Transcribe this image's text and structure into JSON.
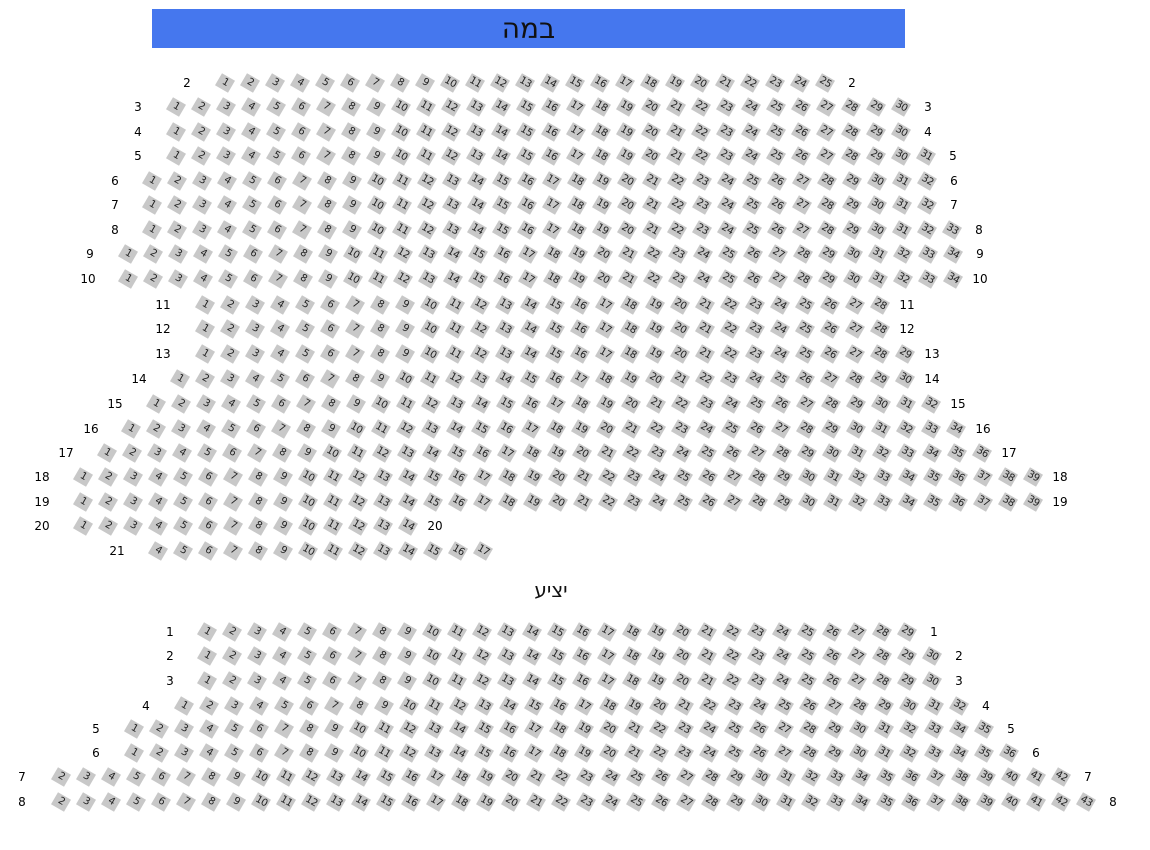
{
  "stage": {
    "label": "במה",
    "color": "#4577ee"
  },
  "seat_color": "#c8c8c8",
  "sections": [
    {
      "name": "main",
      "title": "",
      "rows": [
        {
          "label": "2",
          "first": 1,
          "last": 25
        },
        {
          "label": "3",
          "first": 1,
          "last": 30
        },
        {
          "label": "4",
          "first": 1,
          "last": 30
        },
        {
          "label": "5",
          "first": 1,
          "last": 31
        },
        {
          "label": "6",
          "first": 1,
          "last": 32
        },
        {
          "label": "7",
          "first": 1,
          "last": 32
        },
        {
          "label": "8",
          "first": 1,
          "last": 33
        },
        {
          "label": "9",
          "first": 1,
          "last": 34
        },
        {
          "label": "10",
          "first": 1,
          "last": 34
        },
        {
          "label": "11",
          "first": 1,
          "last": 28
        },
        {
          "label": "12",
          "first": 1,
          "last": 28
        },
        {
          "label": "13",
          "first": 1,
          "last": 29
        },
        {
          "label": "14",
          "first": 1,
          "last": 30
        },
        {
          "label": "15",
          "first": 1,
          "last": 32
        },
        {
          "label": "16",
          "first": 1,
          "last": 34
        },
        {
          "label": "17",
          "first": 1,
          "last": 36
        },
        {
          "label": "18",
          "first": 1,
          "last": 39
        },
        {
          "label": "19",
          "first": 1,
          "last": 39
        },
        {
          "label": "20",
          "first": 1,
          "last": 14
        },
        {
          "label": "21",
          "first": 4,
          "last": 17,
          "right_label": false
        }
      ]
    },
    {
      "name": "balcony",
      "title": "יציע",
      "rows": [
        {
          "label": "1",
          "first": 1,
          "last": 29
        },
        {
          "label": "2",
          "first": 1,
          "last": 30
        },
        {
          "label": "3",
          "first": 1,
          "last": 30
        },
        {
          "label": "4",
          "first": 1,
          "last": 32
        },
        {
          "label": "5",
          "first": 1,
          "last": 35
        },
        {
          "label": "6",
          "first": 1,
          "last": 36
        },
        {
          "label": "7",
          "first": 2,
          "last": 42
        },
        {
          "label": "8",
          "first": 2,
          "last": 43
        }
      ]
    }
  ]
}
